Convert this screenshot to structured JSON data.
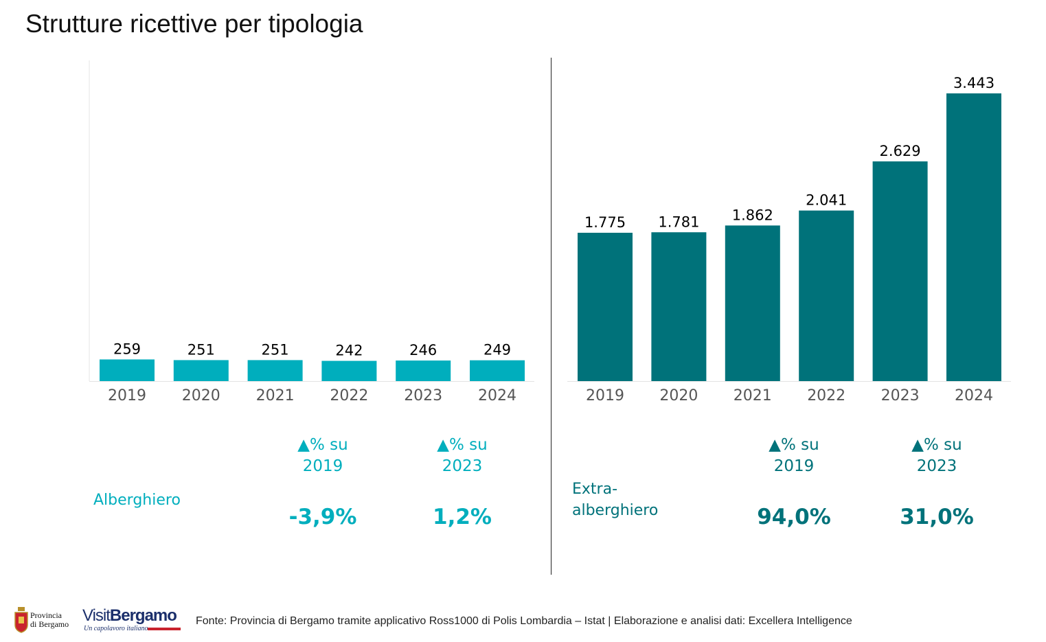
{
  "title": "Strutture ricettive per tipologia",
  "colors": {
    "alberghiero": "#00aebd",
    "extra": "#00727a",
    "axis_text": "#555555"
  },
  "chart_data": [
    {
      "type": "bar",
      "name": "Alberghiero",
      "categories": [
        "2019",
        "2020",
        "2021",
        "2022",
        "2023",
        "2024"
      ],
      "values": [
        259,
        251,
        251,
        242,
        246,
        249
      ],
      "value_labels": [
        "259",
        "251",
        "251",
        "242",
        "246",
        "249"
      ],
      "ylim": [
        0,
        3443
      ]
    },
    {
      "type": "bar",
      "name": "Extra-alberghiero",
      "categories": [
        "2019",
        "2020",
        "2021",
        "2022",
        "2023",
        "2024"
      ],
      "values": [
        1775,
        1781,
        1862,
        2041,
        2629,
        3443
      ],
      "value_labels": [
        "1.775",
        "1.781",
        "1.862",
        "2.041",
        "2.629",
        "3.443"
      ],
      "ylim": [
        0,
        3443
      ]
    }
  ],
  "left_panel": {
    "label": "Alberghiero",
    "stat1": {
      "head1": "▲% su",
      "head2": "2019",
      "value": "-3,9%"
    },
    "stat2": {
      "head1": "▲% su",
      "head2": "2023",
      "value": "1,2%"
    }
  },
  "right_panel": {
    "label_line1": "Extra-",
    "label_line2": "alberghiero",
    "stat1": {
      "head1": "▲% su",
      "head2": "2019",
      "value": "94,0%"
    },
    "stat2": {
      "head1": "▲% su",
      "head2": "2023",
      "value": "31,0%"
    }
  },
  "footer": {
    "source": "Fonte: Provincia di Bergamo tramite applicativo Ross1000 di Polis Lombardia – Istat | Elaborazione e analisi dati: Excellera Intelligence",
    "prov_logo_line1": "Provincia",
    "prov_logo_line2": "di Bergamo",
    "visit_logo_a": "Visit",
    "visit_logo_b": "Bergamo",
    "visit_tagline": "Un capolavoro italiano"
  }
}
